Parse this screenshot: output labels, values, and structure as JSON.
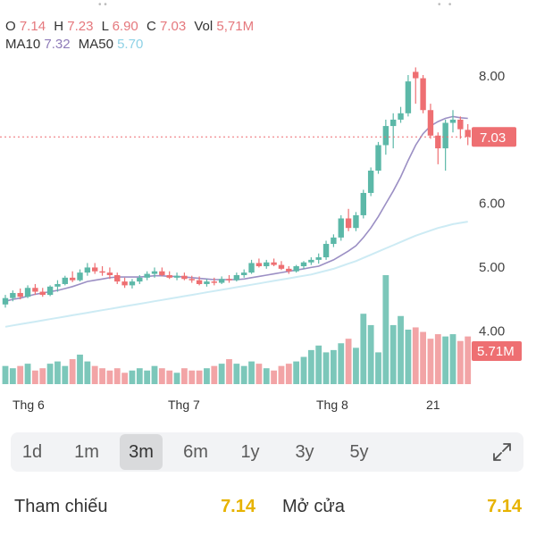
{
  "ohlc": {
    "open_label": "O",
    "open": "7.14",
    "high_label": "H",
    "high": "7.23",
    "low_label": "L",
    "low": "6.90",
    "close_label": "C",
    "close": "7.03",
    "vol_label": "Vol",
    "vol": "5,71M"
  },
  "ma": {
    "ma10_label": "MA10",
    "ma10": "7.32",
    "ma50_label": "MA50",
    "ma50": "5.70"
  },
  "colors": {
    "up": "#5cb8a8",
    "down": "#ee6f72",
    "ma10": "#9b8fc4",
    "ma50": "#cdebf4",
    "price_tag": "#ee6f72",
    "accent": "#e7b300"
  },
  "chart_data": {
    "type": "candlestick",
    "y_ticks": [
      "8.00",
      "6.00",
      "5.00",
      "4.00"
    ],
    "x_labels": [
      "Thg 6",
      "Thg 7",
      "Thg 8",
      "21"
    ],
    "last_price_label": "7.03",
    "last_volume_label": "5.71M",
    "ylim": [
      3.6,
      8.3
    ],
    "candles": [
      [
        4.4,
        4.55,
        4.35,
        4.5
      ],
      [
        4.5,
        4.62,
        4.45,
        4.58
      ],
      [
        4.58,
        4.65,
        4.48,
        4.52
      ],
      [
        4.52,
        4.7,
        4.5,
        4.66
      ],
      [
        4.66,
        4.72,
        4.55,
        4.6
      ],
      [
        4.6,
        4.66,
        4.52,
        4.55
      ],
      [
        4.55,
        4.7,
        4.53,
        4.68
      ],
      [
        4.68,
        4.78,
        4.6,
        4.72
      ],
      [
        4.72,
        4.85,
        4.7,
        4.82
      ],
      [
        4.82,
        4.92,
        4.75,
        4.78
      ],
      [
        4.78,
        4.95,
        4.76,
        4.9
      ],
      [
        4.9,
        5.05,
        4.85,
        4.98
      ],
      [
        4.98,
        5.05,
        4.88,
        4.92
      ],
      [
        4.92,
        5.0,
        4.85,
        4.9
      ],
      [
        4.9,
        4.98,
        4.8,
        4.86
      ],
      [
        4.86,
        4.9,
        4.72,
        4.76
      ],
      [
        4.76,
        4.82,
        4.66,
        4.7
      ],
      [
        4.7,
        4.8,
        4.65,
        4.76
      ],
      [
        4.76,
        4.86,
        4.72,
        4.82
      ],
      [
        4.82,
        4.92,
        4.78,
        4.88
      ],
      [
        4.88,
        4.98,
        4.82,
        4.92
      ],
      [
        4.92,
        4.98,
        4.84,
        4.86
      ],
      [
        4.86,
        4.92,
        4.8,
        4.82
      ],
      [
        4.82,
        4.9,
        4.78,
        4.85
      ],
      [
        4.85,
        4.9,
        4.78,
        4.8
      ],
      [
        4.8,
        4.85,
        4.74,
        4.78
      ],
      [
        4.78,
        4.84,
        4.7,
        4.72
      ],
      [
        4.72,
        4.8,
        4.68,
        4.76
      ],
      [
        4.76,
        4.82,
        4.7,
        4.74
      ],
      [
        4.74,
        4.84,
        4.72,
        4.8
      ],
      [
        4.8,
        4.86,
        4.74,
        4.78
      ],
      [
        4.78,
        4.9,
        4.76,
        4.86
      ],
      [
        4.86,
        4.95,
        4.82,
        4.9
      ],
      [
        4.9,
        5.1,
        4.88,
        5.05
      ],
      [
        5.05,
        5.12,
        4.98,
        5.0
      ],
      [
        5.0,
        5.1,
        4.96,
        5.06
      ],
      [
        5.06,
        5.12,
        5.0,
        5.02
      ],
      [
        5.02,
        5.08,
        4.94,
        4.96
      ],
      [
        4.96,
        5.0,
        4.88,
        4.92
      ],
      [
        4.92,
        5.02,
        4.9,
        5.0
      ],
      [
        5.0,
        5.08,
        4.96,
        5.06
      ],
      [
        5.06,
        5.14,
        5.02,
        5.1
      ],
      [
        5.1,
        5.2,
        5.04,
        5.14
      ],
      [
        5.14,
        5.4,
        5.1,
        5.35
      ],
      [
        5.35,
        5.5,
        5.3,
        5.45
      ],
      [
        5.45,
        5.8,
        5.4,
        5.75
      ],
      [
        5.75,
        5.9,
        5.55,
        5.6
      ],
      [
        5.6,
        5.85,
        5.55,
        5.8
      ],
      [
        5.8,
        6.2,
        5.75,
        6.15
      ],
      [
        6.15,
        6.55,
        6.1,
        6.5
      ],
      [
        6.5,
        6.95,
        6.45,
        6.9
      ],
      [
        6.9,
        7.3,
        6.75,
        7.2
      ],
      [
        7.2,
        7.4,
        6.85,
        7.3
      ],
      [
        7.3,
        7.5,
        7.25,
        7.4
      ],
      [
        7.4,
        8.0,
        7.35,
        7.9
      ],
      [
        8.05,
        8.12,
        7.55,
        7.95
      ],
      [
        7.95,
        8.0,
        7.4,
        7.45
      ],
      [
        7.45,
        7.55,
        7.0,
        7.05
      ],
      [
        7.05,
        7.1,
        6.6,
        6.85
      ],
      [
        6.85,
        7.3,
        6.5,
        7.25
      ],
      [
        7.25,
        7.45,
        7.1,
        7.3
      ],
      [
        7.3,
        7.35,
        7.0,
        7.15
      ],
      [
        7.14,
        7.23,
        6.9,
        7.03
      ]
    ],
    "ma10": [
      4.45,
      4.48,
      4.5,
      4.53,
      4.56,
      4.58,
      4.6,
      4.62,
      4.65,
      4.68,
      4.72,
      4.76,
      4.78,
      4.8,
      4.82,
      4.83,
      4.83,
      4.83,
      4.83,
      4.84,
      4.85,
      4.85,
      4.84,
      4.84,
      4.83,
      4.82,
      4.81,
      4.8,
      4.79,
      4.79,
      4.79,
      4.79,
      4.8,
      4.82,
      4.84,
      4.86,
      4.88,
      4.9,
      4.92,
      4.94,
      4.96,
      4.98,
      5.0,
      5.05,
      5.1,
      5.17,
      5.24,
      5.32,
      5.45,
      5.6,
      5.78,
      5.98,
      6.18,
      6.4,
      6.66,
      6.9,
      7.08,
      7.2,
      7.27,
      7.32,
      7.35,
      7.33,
      7.32
    ],
    "ma50": [
      4.05,
      4.07,
      4.09,
      4.11,
      4.13,
      4.15,
      4.17,
      4.19,
      4.21,
      4.23,
      4.25,
      4.27,
      4.29,
      4.31,
      4.33,
      4.35,
      4.37,
      4.39,
      4.41,
      4.43,
      4.45,
      4.47,
      4.49,
      4.51,
      4.53,
      4.55,
      4.57,
      4.59,
      4.61,
      4.63,
      4.65,
      4.67,
      4.69,
      4.71,
      4.73,
      4.75,
      4.77,
      4.79,
      4.81,
      4.83,
      4.85,
      4.87,
      4.9,
      4.93,
      4.96,
      5.0,
      5.04,
      5.08,
      5.13,
      5.18,
      5.23,
      5.28,
      5.33,
      5.38,
      5.43,
      5.48,
      5.52,
      5.56,
      5.6,
      5.63,
      5.66,
      5.68,
      5.7
    ],
    "volumes": [
      0.8,
      0.7,
      0.8,
      0.9,
      0.6,
      0.7,
      0.9,
      1.0,
      0.8,
      1.1,
      1.3,
      1.0,
      0.8,
      0.7,
      0.6,
      0.7,
      0.5,
      0.6,
      0.7,
      0.6,
      0.8,
      0.7,
      0.6,
      0.5,
      0.7,
      0.6,
      0.6,
      0.7,
      0.8,
      0.9,
      1.1,
      0.9,
      0.8,
      1.0,
      0.9,
      0.7,
      0.6,
      0.8,
      0.9,
      1.0,
      1.2,
      1.5,
      1.7,
      1.4,
      1.5,
      1.8,
      2.0,
      1.6,
      3.1,
      2.6,
      1.4,
      4.8,
      2.6,
      3.0,
      2.4,
      2.5,
      2.3,
      2.0,
      2.2,
      2.1,
      2.2,
      1.9,
      2.1
    ]
  },
  "ranges": [
    "1d",
    "1m",
    "3m",
    "6m",
    "1y",
    "3y",
    "5y"
  ],
  "active_range": "3m",
  "info": {
    "ref_label": "Tham chiếu",
    "ref_value": "7.14",
    "open_label": "Mở cửa",
    "open_value": "7.14"
  }
}
